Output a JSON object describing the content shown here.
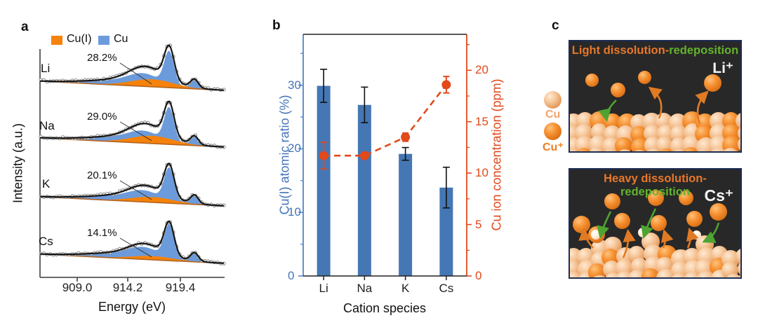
{
  "panel_a": {
    "label": "a",
    "legend": [
      {
        "label": "Cu(I)",
        "color": "#F5820A"
      },
      {
        "label": "Cu",
        "color": "#6C9BDB"
      }
    ],
    "ylabel": "Intensity (a.u.)",
    "xlabel": "Energy (eV)",
    "chart_data": {
      "type": "area",
      "description": "Cu LMM Auger spectra fitted with Cu(I) and Cu components for electrolytes with different cations",
      "x_axis": {
        "label": "Energy (eV)",
        "ticks": [
          "909.0",
          "914.2",
          "919.4"
        ]
      },
      "y_axis": {
        "label": "Intensity (a.u.)"
      },
      "components": [
        "Cu(I)",
        "Cu"
      ],
      "spectra": [
        {
          "cation": "Li",
          "cu1_atomic_ratio_pct": 28.2,
          "pct_label": "28.2%"
        },
        {
          "cation": "Na",
          "cu1_atomic_ratio_pct": 29.0,
          "pct_label": "29.0%"
        },
        {
          "cation": "K",
          "cu1_atomic_ratio_pct": 20.1,
          "pct_label": "20.1%"
        },
        {
          "cation": "Cs",
          "cu1_atomic_ratio_pct": 14.1,
          "pct_label": "14.1%"
        }
      ],
      "approx_peak_positions_eV": {
        "Cu_main": 918.4,
        "Cu_shoulder": 913.9,
        "Cu_small": 921.0,
        "CuI_broad": 916.2
      }
    }
  },
  "panel_b": {
    "label": "b",
    "chart_data": {
      "type": "bar+line",
      "categories": [
        "Li",
        "Na",
        "K",
        "Cs"
      ],
      "series": [
        {
          "name": "Cu(I) atomic ratio (%)",
          "type": "bar",
          "axis": "left",
          "color": "#4577B4",
          "values": [
            29.9,
            26.9,
            19.2,
            13.9
          ],
          "errors": [
            2.6,
            2.8,
            1.0,
            3.2
          ]
        },
        {
          "name": "Cu ion concentration (ppm)",
          "type": "line-dashed",
          "axis": "right",
          "color": "#E2491B",
          "values": [
            11.7,
            11.7,
            13.5,
            18.6
          ],
          "errors": [
            1.3,
            0.3,
            0.4,
            0.8
          ]
        }
      ],
      "left_axis": {
        "label": "Cu(I) atomic ratio (%)",
        "ticks": [
          0,
          10,
          20,
          30
        ],
        "minor_ticks": [
          5,
          15,
          25,
          35
        ],
        "range": [
          0,
          38
        ],
        "color": "#4575b8"
      },
      "right_axis": {
        "label": "Cu ion concentration (ppm)",
        "ticks": [
          0,
          5,
          10,
          15,
          20
        ],
        "minor_step": 2.5,
        "range": [
          0,
          23.5
        ],
        "color": "#E2491B"
      },
      "xlabel": "Cation species",
      "grid": false,
      "legend_position": "none"
    }
  },
  "panel_c": {
    "label": "c",
    "legend": [
      {
        "label": "Cu",
        "color": "#F2A36C",
        "sphere": "light"
      },
      {
        "label": "Cu⁺",
        "color": "#ED7D21",
        "sphere": "dark"
      }
    ],
    "boxes": [
      {
        "title_orange": "Light dissolution-",
        "title_green": "redeposition",
        "ion": "Li⁺"
      },
      {
        "title_orange": "Heavy dissolution-",
        "title_green": "redeposition",
        "ion": "Cs⁺"
      }
    ],
    "colors": {
      "background": "#282828",
      "border": "#1e2d55",
      "arrow_orange": "#E07B24",
      "arrow_green": "#4EA332"
    }
  }
}
